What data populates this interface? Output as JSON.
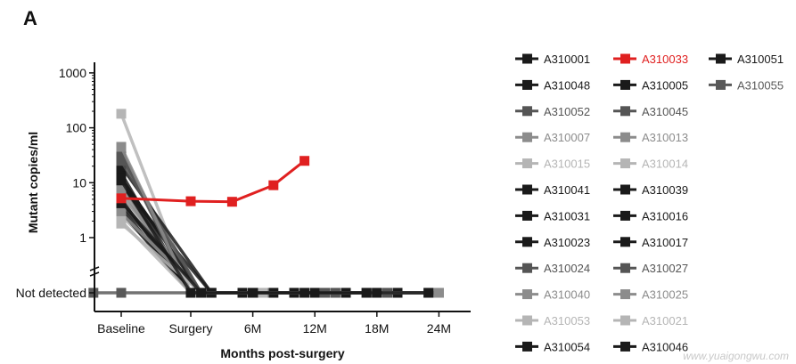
{
  "panel_label": "A",
  "watermark": "www.yuaigongwu.com",
  "chart_data": {
    "type": "line",
    "xlabel": "Months post-surgery",
    "ylabel": "Mutant copies/ml",
    "y_scale": "log",
    "y_ticks": [
      "Not detected",
      "1",
      "10",
      "100",
      "1000"
    ],
    "x_ticks": [
      "Baseline",
      "Surgery",
      "6M",
      "12M",
      "18M",
      "24M"
    ],
    "xlim_months": [
      -7,
      26
    ],
    "not_detected_value": 0.1,
    "highlight_color": "#e02020",
    "series": [
      {
        "name": "A310001",
        "color": "#1a1a1a",
        "x": [
          -5,
          0,
          5,
          10,
          15,
          20
        ],
        "y": [
          15,
          0.1,
          0.1,
          0.1,
          0.1,
          0.1
        ]
      },
      {
        "name": "A310033",
        "color": "#e02020",
        "x": [
          -5,
          0,
          4,
          8,
          11
        ],
        "y": [
          5.2,
          4.6,
          4.5,
          9,
          25
        ]
      },
      {
        "name": "A310051",
        "color": "#1a1a1a",
        "x": [
          -5,
          1,
          6,
          12,
          19
        ],
        "y": [
          12,
          0.1,
          0.1,
          0.1,
          0.1
        ]
      },
      {
        "name": "A310048",
        "color": "#1a1a1a",
        "x": [
          -5,
          0,
          6,
          12,
          18
        ],
        "y": [
          10,
          0.1,
          0.1,
          0.1,
          0.1
        ]
      },
      {
        "name": "A310005",
        "color": "#1a1a1a",
        "x": [
          -5,
          2,
          7,
          12,
          18
        ],
        "y": [
          9,
          0.1,
          0.1,
          0.1,
          0.1
        ]
      },
      {
        "name": "A310055",
        "color": "#595959",
        "x": [
          -7,
          -5,
          0,
          6,
          12,
          24
        ],
        "y": [
          0.1,
          0.1,
          0.1,
          0.1,
          0.1,
          0.1
        ]
      },
      {
        "name": "A310052",
        "color": "#555555",
        "x": [
          -5,
          0,
          6,
          13
        ],
        "y": [
          40,
          0.1,
          0.1,
          0.1
        ]
      },
      {
        "name": "A310045",
        "color": "#555555",
        "x": [
          -5,
          1,
          7,
          14
        ],
        "y": [
          30,
          0.1,
          0.1,
          0.1
        ]
      },
      {
        "name": "A310007",
        "color": "#8c8c8c",
        "x": [
          -5,
          0,
          6,
          12,
          17
        ],
        "y": [
          8,
          0.1,
          0.1,
          0.1,
          0.1
        ]
      },
      {
        "name": "A310013",
        "color": "#8c8c8c",
        "x": [
          -5,
          1,
          7,
          12,
          18
        ],
        "y": [
          6,
          0.1,
          0.1,
          0.1,
          0.1
        ]
      },
      {
        "name": "A310015",
        "color": "#b5b5b5",
        "x": [
          -5,
          0,
          6,
          12,
          18,
          24
        ],
        "y": [
          180,
          0.1,
          0.1,
          0.1,
          0.1,
          0.1
        ]
      },
      {
        "name": "A310014",
        "color": "#b5b5b5",
        "x": [
          -5,
          1,
          6,
          12
        ],
        "y": [
          2.5,
          0.1,
          0.1,
          0.1
        ]
      },
      {
        "name": "A310041",
        "color": "#1a1a1a",
        "x": [
          -5,
          0,
          6,
          12,
          17
        ],
        "y": [
          5,
          0.1,
          0.1,
          0.1,
          0.1
        ]
      },
      {
        "name": "A310039",
        "color": "#1a1a1a",
        "x": [
          -5,
          1,
          7,
          13,
          20
        ],
        "y": [
          4,
          0.1,
          0.1,
          0.1,
          0.1
        ]
      },
      {
        "name": "A310031",
        "color": "#1a1a1a",
        "x": [
          -5,
          0,
          6,
          12,
          18,
          23
        ],
        "y": [
          3.5,
          0.1,
          0.1,
          0.1,
          0.1,
          0.1
        ]
      },
      {
        "name": "A310016",
        "color": "#1a1a1a",
        "x": [
          -5,
          2,
          8,
          13
        ],
        "y": [
          20,
          0.1,
          0.1,
          0.1
        ]
      },
      {
        "name": "A310023",
        "color": "#1a1a1a",
        "x": [
          -5,
          0,
          6,
          12,
          19
        ],
        "y": [
          3,
          0.1,
          0.1,
          0.1,
          0.1
        ]
      },
      {
        "name": "A310017",
        "color": "#1a1a1a",
        "x": [
          -5,
          1,
          7,
          12,
          18,
          23
        ],
        "y": [
          12,
          0.1,
          0.1,
          0.1,
          0.1,
          0.1
        ]
      },
      {
        "name": "A310024",
        "color": "#555555",
        "x": [
          -5,
          0,
          6,
          12,
          18
        ],
        "y": [
          35,
          0.1,
          0.1,
          0.1,
          0.1
        ]
      },
      {
        "name": "A310027",
        "color": "#555555",
        "x": [
          -5,
          1,
          7,
          13,
          19
        ],
        "y": [
          25,
          0.1,
          0.1,
          0.1,
          0.1
        ]
      },
      {
        "name": "A310040",
        "color": "#8c8c8c",
        "x": [
          -5,
          0,
          6,
          12,
          18,
          24
        ],
        "y": [
          45,
          0.1,
          0.1,
          0.1,
          0.1,
          0.1
        ]
      },
      {
        "name": "A310025",
        "color": "#8c8c8c",
        "x": [
          -5,
          1,
          6,
          12,
          17
        ],
        "y": [
          2.8,
          0.1,
          0.1,
          0.1,
          0.1
        ]
      },
      {
        "name": "A310053",
        "color": "#b5b5b5",
        "x": [
          -5,
          0,
          6,
          12
        ],
        "y": [
          2,
          0.1,
          0.1,
          0.1
        ]
      },
      {
        "name": "A310021",
        "color": "#b5b5b5",
        "x": [
          -5,
          1,
          7,
          12,
          18
        ],
        "y": [
          1.8,
          0.1,
          0.1,
          0.1,
          0.1
        ]
      },
      {
        "name": "A310054",
        "color": "#1a1a1a",
        "x": [
          -5,
          0,
          6,
          12,
          18,
          23
        ],
        "y": [
          11,
          0.1,
          0.1,
          0.1,
          0.1,
          0.1
        ]
      },
      {
        "name": "A310046",
        "color": "#1a1a1a",
        "x": [
          -5,
          1,
          6,
          11,
          17
        ],
        "y": [
          4.5,
          0.1,
          0.1,
          0.1,
          0.1
        ]
      }
    ],
    "legend": {
      "placement": "right",
      "rows": [
        [
          "A310001",
          "A310033",
          "A310051"
        ],
        [
          "A310048",
          "A310005",
          "A310055"
        ],
        [
          "A310052",
          "A310045"
        ],
        [
          "A310007",
          "A310013"
        ],
        [
          "A310015",
          "A310014"
        ],
        [
          "A310041",
          "A310039"
        ],
        [
          "A310031",
          "A310016"
        ],
        [
          "A310023",
          "A310017"
        ],
        [
          "A310024",
          "A310027"
        ],
        [
          "A310040",
          "A310025"
        ],
        [
          "A310053",
          "A310021"
        ],
        [
          "A310054",
          "A310046"
        ]
      ]
    }
  }
}
